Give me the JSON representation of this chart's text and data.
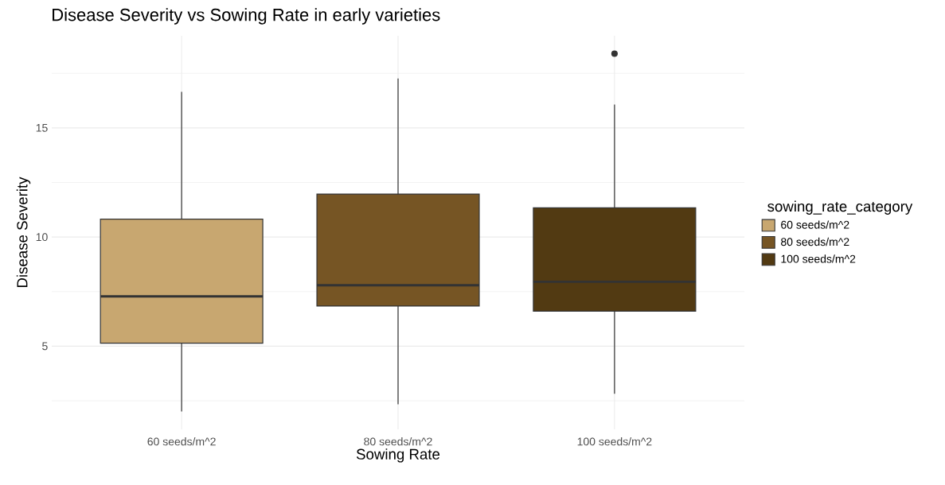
{
  "chart_data": {
    "type": "box",
    "title": "Disease Severity vs Sowing Rate in early varieties",
    "xlabel": "Sowing Rate",
    "ylabel": "Disease Severity",
    "legend_title": "sowing_rate_category",
    "categories": [
      "60 seeds/m^2",
      "80 seeds/m^2",
      "100 seeds/m^2"
    ],
    "series": [
      {
        "name": "60 seeds/m^2",
        "color": "#c8a770",
        "boxes": [
          {
            "low": 2.01,
            "q1": 5.14,
            "median": 7.28,
            "q3": 10.82,
            "high": 16.65
          },
          null,
          null
        ]
      },
      {
        "name": "80 seeds/m^2",
        "color": "#765524",
        "boxes": [
          null,
          {
            "low": 2.34,
            "q1": 6.84,
            "median": 7.79,
            "q3": 11.97,
            "high": 17.26
          },
          null
        ]
      },
      {
        "name": "100 seeds/m^2",
        "color": "#523a12",
        "boxes": [
          null,
          null,
          {
            "low": 2.82,
            "q1": 6.6,
            "median": 7.95,
            "q3": 11.34,
            "high": 16.07,
            "outliers": [
              18.4
            ]
          }
        ]
      }
    ],
    "ylim": [
      1.19,
      19.22
    ],
    "yticks": [
      5,
      10,
      15
    ],
    "grid": true,
    "legend": "right"
  }
}
